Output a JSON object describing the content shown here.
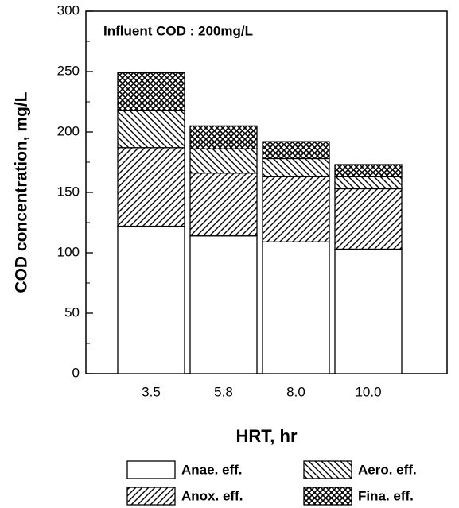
{
  "chart_data": {
    "type": "stacked_bar",
    "annotation": "Influent COD : 200mg/L",
    "ylabel": "COD concentration, mg/L",
    "xlabel": "HRT, hr",
    "categories": [
      "3.5",
      "5.8",
      "8.0",
      "10.0"
    ],
    "series": [
      {
        "name": "Anae. eff.",
        "color": "#000000",
        "hatch": "none",
        "values": [
          122,
          114,
          109,
          103
        ]
      },
      {
        "name": "Anox. eff.",
        "color": "#000000",
        "hatch": "diag",
        "values": [
          65,
          52,
          54,
          50
        ]
      },
      {
        "name": "Aero. eff.",
        "color": "#000000",
        "hatch": "backdiag",
        "values": [
          31,
          20,
          15,
          10
        ]
      },
      {
        "name": "Fina. eff.",
        "color": "#000000",
        "hatch": "cross",
        "values": [
          31,
          19,
          14,
          10
        ]
      }
    ],
    "ylim": [
      0,
      300
    ],
    "yticks": [
      0,
      50,
      100,
      150,
      200,
      250,
      300
    ]
  }
}
